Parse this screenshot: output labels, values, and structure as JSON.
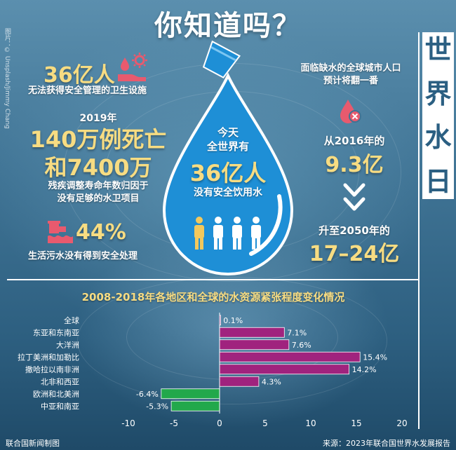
{
  "title": "你知道吗？",
  "side_title": [
    "世",
    "界",
    "水",
    "日"
  ],
  "credit": "图片：© Unsplash/Jimmy Chang",
  "left_stats": {
    "sanitation": {
      "value": "36亿人",
      "desc": "无法获得安全管理的卫生设施"
    },
    "deaths": {
      "year": "2019年",
      "line1": "140万例死亡",
      "line2": "和7400万",
      "desc1": "残疾调整寿命年数归因于",
      "desc2": "没有足够的水卫项目"
    },
    "wastewater": {
      "value": "44%",
      "desc": "生活污水没有得到安全处理"
    }
  },
  "drop": {
    "line1": "今天",
    "line2": "全世界有",
    "value": "36亿人",
    "desc": "没有安全饮用水"
  },
  "right_stats": {
    "header1": "面临缺水的全球城市人口",
    "header2": "预计将翻一番",
    "from_label": "从2016年的",
    "from_value": "9.3亿",
    "to_label": "升至2050年的",
    "to_value": "17–24亿"
  },
  "icons": {
    "sanitation": "sanitation-hand-drop-icon",
    "drop_shortage": "water-drop-shortage-icon",
    "arrow": "double-chevron-down-icon",
    "wastewater": "wastewater-pipe-icon",
    "cup": "pouring-cup-icon",
    "people": "person-icon"
  },
  "colors": {
    "accent": "#f7dc82",
    "drop": "#1e8fd6",
    "positive_bar": "#a0237e",
    "negative_bar": "#22a84b",
    "side_title_text": "#2b5f82"
  },
  "chart_data": {
    "type": "bar",
    "orientation": "horizontal",
    "title": "2008-2018年各地区和全球的水资源紧张程度变化情况",
    "categories": [
      "全球",
      "东亚和东南亚",
      "大洋洲",
      "拉丁美洲和加勒比",
      "撒哈拉以南非洲",
      "北非和西亚",
      "欧洲和北美洲",
      "中亚和南亚"
    ],
    "values": [
      0.1,
      7.1,
      7.6,
      15.4,
      14.2,
      4.3,
      -6.4,
      -5.3
    ],
    "value_labels": [
      "0.1%",
      "7.1%",
      "7.6%",
      "15.4%",
      "14.2%",
      "4.3%",
      "-6.4%",
      "-5.3%"
    ],
    "xlim": [
      -10,
      20
    ],
    "xticks": [
      -10,
      -5,
      0,
      5,
      10,
      15,
      20
    ],
    "xtick_labels": [
      "-10",
      "-5",
      "0",
      "5",
      "10",
      "15",
      "20"
    ],
    "grid": false
  },
  "footer": {
    "left": "联合国新闻制图",
    "right": "来源：2023年联合国世界水发展报告"
  }
}
